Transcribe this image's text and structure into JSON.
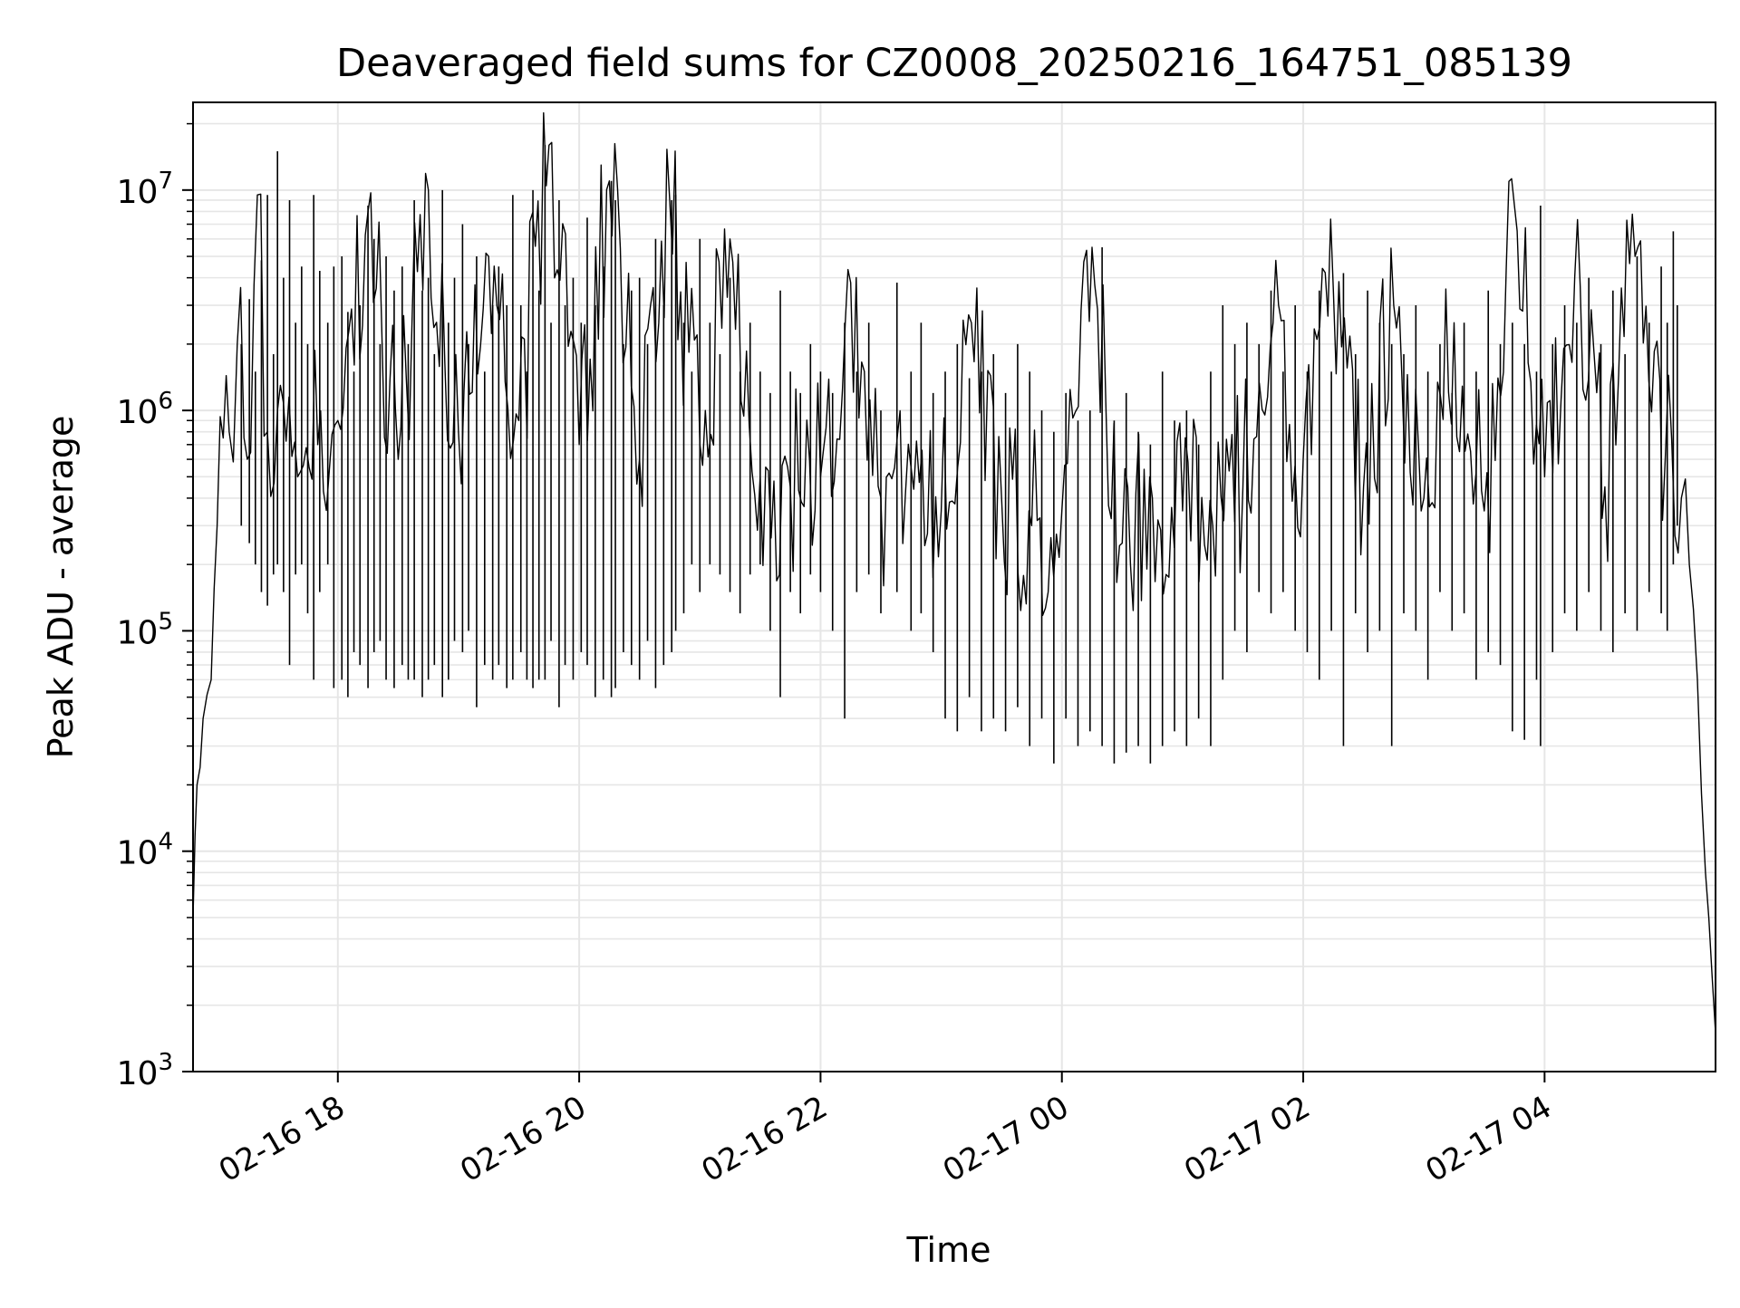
{
  "chart_data": {
    "type": "line",
    "title": "Deaveraged field sums for CZ0008_20250216_164751_085139",
    "xlabel": "Time",
    "ylabel": "Peak ADU - average",
    "yscale": "log",
    "ylim": [
      1000,
      25000000
    ],
    "xlim": [
      "2025-02-16 16:48",
      "2025-02-17 05:25"
    ],
    "grid": true,
    "legend": "none",
    "x_ticks": [
      {
        "t": "2025-02-16 18:00",
        "label": "02-16 18"
      },
      {
        "t": "2025-02-16 20:00",
        "label": "02-16 20"
      },
      {
        "t": "2025-02-16 22:00",
        "label": "02-16 22"
      },
      {
        "t": "2025-02-17 00:00",
        "label": "02-17 00"
      },
      {
        "t": "2025-02-17 02:00",
        "label": "02-17 02"
      },
      {
        "t": "2025-02-17 04:00",
        "label": "02-17 04"
      }
    ],
    "y_ticks": [
      {
        "value": 1000,
        "base": "10",
        "exp": "3"
      },
      {
        "value": 10000,
        "base": "10",
        "exp": "4"
      },
      {
        "value": 100000,
        "base": "10",
        "exp": "5"
      },
      {
        "value": 1000000,
        "base": "10",
        "exp": "6"
      },
      {
        "value": 10000000,
        "base": "10",
        "exp": "7"
      }
    ],
    "line_color": "#000000",
    "grid_color": "#e6e6e6",
    "series": [
      {
        "x": [
          "2025-02-16 16:48",
          "2025-02-16 16:50",
          "2025-02-16 16:53",
          "2025-02-16 16:57",
          "2025-02-16 17:00",
          "2025-02-16 17:03",
          "2025-02-16 17:06",
          "2025-02-16 17:10",
          "2025-02-16 17:15",
          "2025-02-16 17:20",
          "2025-02-16 17:25",
          "2025-02-16 17:30",
          "2025-02-16 17:40",
          "2025-02-16 17:50",
          "2025-02-16 18:00",
          "2025-02-16 18:15",
          "2025-02-16 18:30",
          "2025-02-16 18:45",
          "2025-02-16 19:00",
          "2025-02-16 19:15",
          "2025-02-16 19:30",
          "2025-02-16 19:45",
          "2025-02-16 20:00",
          "2025-02-16 20:15",
          "2025-02-16 20:30",
          "2025-02-16 20:45",
          "2025-02-16 21:00",
          "2025-02-16 21:15",
          "2025-02-16 21:30",
          "2025-02-16 21:45",
          "2025-02-16 22:00",
          "2025-02-16 22:15",
          "2025-02-16 22:30",
          "2025-02-16 22:45",
          "2025-02-16 23:00",
          "2025-02-16 23:15",
          "2025-02-16 23:30",
          "2025-02-16 23:45",
          "2025-02-17 00:00",
          "2025-02-17 00:15",
          "2025-02-17 00:30",
          "2025-02-17 00:45",
          "2025-02-17 01:00",
          "2025-02-17 01:15",
          "2025-02-17 01:30",
          "2025-02-17 01:45",
          "2025-02-17 02:00",
          "2025-02-17 02:15",
          "2025-02-17 02:30",
          "2025-02-17 02:45",
          "2025-02-17 03:00",
          "2025-02-17 03:15",
          "2025-02-17 03:30",
          "2025-02-17 03:45",
          "2025-02-17 04:00",
          "2025-02-17 04:15",
          "2025-02-17 04:30",
          "2025-02-17 04:45",
          "2025-02-17 05:00",
          "2025-02-17 05:08",
          "2025-02-17 05:12",
          "2025-02-17 05:16",
          "2025-02-17 05:20",
          "2025-02-17 05:25"
        ],
        "y": [
          5000,
          20000,
          40000,
          60000,
          300000,
          750000,
          800000,
          2000000,
          600000,
          9500000,
          800000,
          1000000,
          500000,
          700000,
          900000,
          8000000,
          600000,
          10000000,
          800000,
          5000000,
          900000,
          16000000,
          700000,
          11000000,
          600000,
          9000000,
          700000,
          6000000,
          500000,
          450000,
          500000,
          3800000,
          400000,
          550000,
          350000,
          2500000,
          400000,
          300000,
          350000,
          5500000,
          250000,
          400000,
          350000,
          300000,
          450000,
          2500000,
          600000,
          3500000,
          450000,
          3000000,
          400000,
          2500000,
          350000,
          8500000,
          500000,
          4000000,
          450000,
          5000000,
          600000,
          400000,
          200000,
          60000,
          8000,
          1500
        ],
        "spikes": [
          [
            "2025-02-16 17:12",
            2000000,
            300000
          ],
          [
            "2025-02-16 17:16",
            3200000,
            250000
          ],
          [
            "2025-02-16 17:19",
            1500000,
            200000
          ],
          [
            "2025-02-16 17:22",
            4800000,
            150000
          ],
          [
            "2025-02-16 17:25",
            9500000,
            130000
          ],
          [
            "2025-02-16 17:28",
            1800000,
            180000
          ],
          [
            "2025-02-16 17:30",
            15000000,
            200000
          ],
          [
            "2025-02-16 17:33",
            4000000,
            150000
          ],
          [
            "2025-02-16 17:36",
            9000000,
            70000
          ],
          [
            "2025-02-16 17:39",
            2500000,
            180000
          ],
          [
            "2025-02-16 17:42",
            4500000,
            200000
          ],
          [
            "2025-02-16 17:45",
            2000000,
            120000
          ],
          [
            "2025-02-16 17:48",
            9500000,
            60000
          ],
          [
            "2025-02-16 17:51",
            4300000,
            150000
          ],
          [
            "2025-02-16 17:55",
            2500000,
            200000
          ],
          [
            "2025-02-16 17:58",
            4500000,
            55000
          ],
          [
            "2025-02-16 18:02",
            5000000,
            60000
          ],
          [
            "2025-02-16 18:05",
            2800000,
            50000
          ],
          [
            "2025-02-16 18:08",
            1500000,
            80000
          ],
          [
            "2025-02-16 18:11",
            3000000,
            70000
          ],
          [
            "2025-02-16 18:15",
            8500000,
            55000
          ],
          [
            "2025-02-16 18:18",
            6000000,
            80000
          ],
          [
            "2025-02-16 18:21",
            2000000,
            90000
          ],
          [
            "2025-02-16 18:24",
            5000000,
            60000
          ],
          [
            "2025-02-16 18:28",
            3500000,
            55000
          ],
          [
            "2025-02-16 18:32",
            4500000,
            70000
          ],
          [
            "2025-02-16 18:35",
            2000000,
            60000
          ],
          [
            "2025-02-16 18:38",
            9000000,
            60000
          ],
          [
            "2025-02-16 18:42",
            3500000,
            50000
          ],
          [
            "2025-02-16 18:45",
            4000000,
            60000
          ],
          [
            "2025-02-16 18:48",
            1800000,
            70000
          ],
          [
            "2025-02-16 18:52",
            10000000,
            50000
          ],
          [
            "2025-02-16 18:55",
            2500000,
            60000
          ],
          [
            "2025-02-16 18:58",
            4000000,
            90000
          ],
          [
            "2025-02-16 19:02",
            7000000,
            80000
          ],
          [
            "2025-02-16 19:05",
            2000000,
            100000
          ],
          [
            "2025-02-16 19:09",
            5000000,
            45000
          ],
          [
            "2025-02-16 19:13",
            1500000,
            70000
          ],
          [
            "2025-02-16 19:17",
            3000000,
            60000
          ],
          [
            "2025-02-16 19:20",
            4500000,
            70000
          ],
          [
            "2025-02-16 19:24",
            3000000,
            55000
          ],
          [
            "2025-02-16 19:27",
            9500000,
            60000
          ],
          [
            "2025-02-16 19:31",
            3000000,
            80000
          ],
          [
            "2025-02-16 19:34",
            1500000,
            60000
          ],
          [
            "2025-02-16 19:37",
            10000000,
            55000
          ],
          [
            "2025-02-16 19:40",
            3500000,
            60000
          ],
          [
            "2025-02-16 19:43",
            16000000,
            60000
          ],
          [
            "2025-02-16 19:46",
            2500000,
            90000
          ],
          [
            "2025-02-16 19:50",
            9000000,
            45000
          ],
          [
            "2025-02-16 19:53",
            3000000,
            70000
          ],
          [
            "2025-02-16 19:57",
            4000000,
            60000
          ],
          [
            "2025-02-16 20:01",
            2500000,
            80000
          ],
          [
            "2025-02-16 20:04",
            7500000,
            70000
          ],
          [
            "2025-02-16 20:08",
            3000000,
            50000
          ],
          [
            "2025-02-16 20:12",
            4500000,
            60000
          ],
          [
            "2025-02-16 20:16",
            11000000,
            50000
          ],
          [
            "2025-02-16 20:18",
            9000000,
            55000
          ],
          [
            "2025-02-16 20:22",
            2000000,
            80000
          ],
          [
            "2025-02-16 20:26",
            3500000,
            70000
          ],
          [
            "2025-02-16 20:30",
            4000000,
            60000
          ],
          [
            "2025-02-16 20:34",
            2000000,
            90000
          ],
          [
            "2025-02-16 20:38",
            6000000,
            55000
          ],
          [
            "2025-02-16 20:42",
            3000000,
            70000
          ],
          [
            "2025-02-16 20:46",
            9000000,
            80000
          ],
          [
            "2025-02-16 20:48",
            9500000,
            100000
          ],
          [
            "2025-02-16 20:52",
            2500000,
            120000
          ],
          [
            "2025-02-16 20:56",
            1500000,
            200000
          ],
          [
            "2025-02-16 21:00",
            6000000,
            150000
          ],
          [
            "2025-02-16 21:05",
            2500000,
            200000
          ],
          [
            "2025-02-16 21:10",
            1800000,
            180000
          ],
          [
            "2025-02-16 21:15",
            4000000,
            150000
          ],
          [
            "2025-02-16 21:20",
            1500000,
            120000
          ],
          [
            "2025-02-16 21:25",
            2500000,
            180000
          ],
          [
            "2025-02-16 21:30",
            1500000,
            200000
          ],
          [
            "2025-02-16 21:35",
            1200000,
            100000
          ],
          [
            "2025-02-16 21:40",
            3500000,
            50000
          ],
          [
            "2025-02-16 21:45",
            1500000,
            150000
          ],
          [
            "2025-02-16 21:50",
            1200000,
            120000
          ],
          [
            "2025-02-16 21:55",
            2000000,
            180000
          ],
          [
            "2025-02-16 22:00",
            1500000,
            150000
          ],
          [
            "2025-02-16 22:06",
            1200000,
            100000
          ],
          [
            "2025-02-16 22:12",
            2500000,
            40000
          ],
          [
            "2025-02-16 22:18",
            1500000,
            150000
          ],
          [
            "2025-02-16 22:24",
            2500000,
            180000
          ],
          [
            "2025-02-16 22:30",
            1000000,
            120000
          ],
          [
            "2025-02-16 22:38",
            3800000,
            150000
          ],
          [
            "2025-02-16 22:45",
            1500000,
            100000
          ],
          [
            "2025-02-16 22:50",
            2500000,
            120000
          ],
          [
            "2025-02-16 22:56",
            1200000,
            80000
          ],
          [
            "2025-02-16 23:02",
            1500000,
            40000
          ],
          [
            "2025-02-16 23:08",
            2000000,
            35000
          ],
          [
            "2025-02-16 23:14",
            1400000,
            50000
          ],
          [
            "2025-02-16 23:20",
            1500000,
            35000
          ],
          [
            "2025-02-16 23:26",
            1800000,
            40000
          ],
          [
            "2025-02-16 23:32",
            1200000,
            35000
          ],
          [
            "2025-02-16 23:38",
            2000000,
            45000
          ],
          [
            "2025-02-16 23:44",
            1500000,
            30000
          ],
          [
            "2025-02-16 23:50",
            1000000,
            40000
          ],
          [
            "2025-02-16 23:56",
            800000,
            25000
          ],
          [
            "2025-02-17 00:02",
            1200000,
            40000
          ],
          [
            "2025-02-17 00:08",
            900000,
            30000
          ],
          [
            "2025-02-17 00:14",
            1000000,
            35000
          ],
          [
            "2025-02-17 00:20",
            5500000,
            30000
          ],
          [
            "2025-02-17 00:26",
            900000,
            25000
          ],
          [
            "2025-02-17 00:32",
            1200000,
            28000
          ],
          [
            "2025-02-17 00:38",
            800000,
            30000
          ],
          [
            "2025-02-17 00:44",
            700000,
            25000
          ],
          [
            "2025-02-17 00:50",
            1500000,
            30000
          ],
          [
            "2025-02-17 00:56",
            900000,
            35000
          ],
          [
            "2025-02-17 01:02",
            1000000,
            30000
          ],
          [
            "2025-02-17 01:08",
            700000,
            40000
          ],
          [
            "2025-02-17 01:14",
            1500000,
            30000
          ],
          [
            "2025-02-17 01:20",
            3000000,
            60000
          ],
          [
            "2025-02-17 01:26",
            2000000,
            100000
          ],
          [
            "2025-02-17 01:32",
            2500000,
            80000
          ],
          [
            "2025-02-17 01:38",
            2000000,
            150000
          ],
          [
            "2025-02-17 01:44",
            3500000,
            120000
          ],
          [
            "2025-02-17 01:50",
            1500000,
            150000
          ],
          [
            "2025-02-17 01:56",
            3000000,
            100000
          ],
          [
            "2025-02-17 02:02",
            1500000,
            80000
          ],
          [
            "2025-02-17 02:08",
            3500000,
            60000
          ],
          [
            "2025-02-17 02:14",
            1500000,
            100000
          ],
          [
            "2025-02-17 02:20",
            4200000,
            30000
          ],
          [
            "2025-02-17 02:26",
            1800000,
            120000
          ],
          [
            "2025-02-17 02:32",
            3500000,
            80000
          ],
          [
            "2025-02-17 02:38",
            2500000,
            100000
          ],
          [
            "2025-02-17 02:44",
            2000000,
            30000
          ],
          [
            "2025-02-17 02:50",
            1800000,
            120000
          ],
          [
            "2025-02-17 02:56",
            3000000,
            100000
          ],
          [
            "2025-02-17 03:02",
            1500000,
            60000
          ],
          [
            "2025-02-17 03:08",
            2000000,
            150000
          ],
          [
            "2025-02-17 03:14",
            1200000,
            100000
          ],
          [
            "2025-02-17 03:20",
            2500000,
            120000
          ],
          [
            "2025-02-17 03:26",
            1500000,
            60000
          ],
          [
            "2025-02-17 03:32",
            3500000,
            80000
          ],
          [
            "2025-02-17 03:38",
            2000000,
            70000
          ],
          [
            "2025-02-17 03:44",
            2500000,
            35000
          ],
          [
            "2025-02-17 03:50",
            2000000,
            32000
          ],
          [
            "2025-02-17 03:56",
            1500000,
            60000
          ],
          [
            "2025-02-17 03:58",
            8500000,
            30000
          ],
          [
            "2025-02-17 04:04",
            2000000,
            80000
          ],
          [
            "2025-02-17 04:10",
            3000000,
            120000
          ],
          [
            "2025-02-17 04:16",
            2500000,
            100000
          ],
          [
            "2025-02-17 04:22",
            4000000,
            150000
          ],
          [
            "2025-02-17 04:28",
            2000000,
            100000
          ],
          [
            "2025-02-17 04:34",
            3500000,
            80000
          ],
          [
            "2025-02-17 04:40",
            1800000,
            120000
          ],
          [
            "2025-02-17 04:46",
            5000000,
            100000
          ],
          [
            "2025-02-17 04:52",
            2500000,
            150000
          ],
          [
            "2025-02-17 04:58",
            4500000,
            120000
          ],
          [
            "2025-02-17 05:01",
            2500000,
            100000
          ],
          [
            "2025-02-17 05:04",
            6500000,
            200000
          ],
          [
            "2025-02-17 05:06",
            3000000,
            300000
          ]
        ]
      }
    ]
  }
}
